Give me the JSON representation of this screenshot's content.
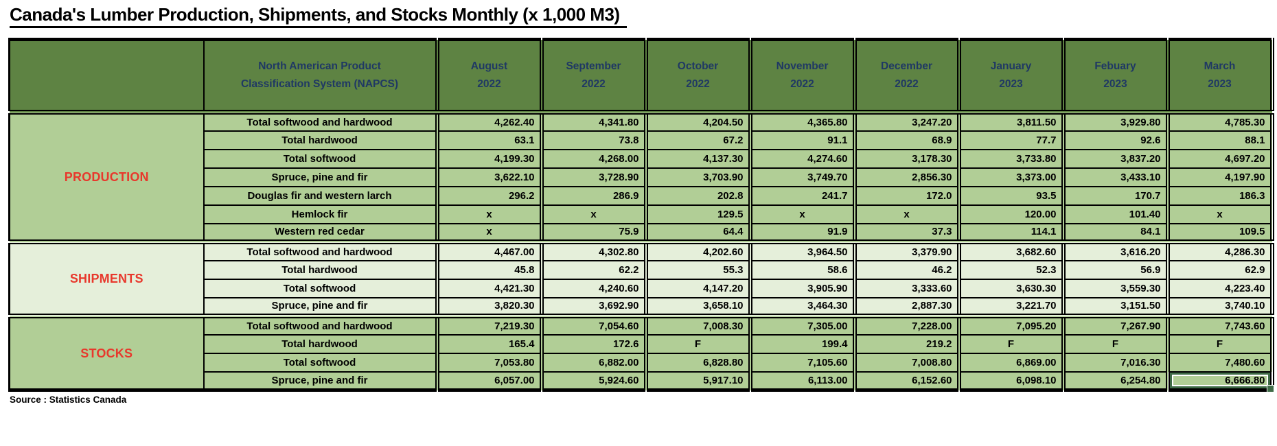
{
  "title": "Canada's Lumber Production, Shipments, and Stocks  Monthly (x 1,000 M3)",
  "source": "Source : Statistics Canada",
  "colors": {
    "header_background": "#5e8343",
    "header_text": "#1f3864",
    "body_background": "#b1ce96",
    "shipments_background": "#e5efda",
    "section_label": "#e8382c",
    "selection_border": "#3f6b47",
    "grid_border": "#000000"
  },
  "table": {
    "napcs_header": "North American Product Classification System (NAPCS)",
    "columns": [
      {
        "month": "August",
        "year": "2022"
      },
      {
        "month": "September",
        "year": "2022"
      },
      {
        "month": "October",
        "year": "2022"
      },
      {
        "month": "November",
        "year": "2022"
      },
      {
        "month": "December",
        "year": "2022"
      },
      {
        "month": "January",
        "year": "2023"
      },
      {
        "month": "Febuary",
        "year": "2023"
      },
      {
        "month": "March",
        "year": "2023"
      }
    ],
    "sections": [
      {
        "label": "PRODUCTION",
        "rows": [
          {
            "label": "Total softwood and hardwood",
            "values": [
              "4,262.40",
              "4,341.80",
              "4,204.50",
              "4,365.80",
              "3,247.20",
              "3,811.50",
              "3,929.80",
              "4,785.30"
            ]
          },
          {
            "label": "Total hardwood",
            "values": [
              "63.1",
              "73.8",
              "67.2",
              "91.1",
              "68.9",
              "77.7",
              "92.6",
              "88.1"
            ]
          },
          {
            "label": "Total softwood",
            "values": [
              "4,199.30",
              "4,268.00",
              "4,137.30",
              "4,274.60",
              "3,178.30",
              "3,733.80",
              "3,837.20",
              "4,697.20"
            ]
          },
          {
            "label": "Spruce, pine and fir",
            "values": [
              "3,622.10",
              "3,728.90",
              "3,703.90",
              "3,749.70",
              "2,856.30",
              "3,373.00",
              "3,433.10",
              "4,197.90"
            ]
          },
          {
            "label": "Douglas fir and western larch",
            "values": [
              "296.2",
              "286.9",
              "202.8",
              "241.7",
              "172.0",
              "93.5",
              "170.7",
              "186.3"
            ]
          },
          {
            "label": "Hemlock fir",
            "values": [
              "x",
              "x",
              "129.5",
              "x",
              "x",
              "120.00",
              "101.40",
              "x"
            ]
          },
          {
            "label": "Western red cedar",
            "values": [
              "x",
              "75.9",
              "64.4",
              "91.9",
              "37.3",
              "114.1",
              "84.1",
              "109.5"
            ]
          }
        ]
      },
      {
        "label": "SHIPMENTS",
        "rows": [
          {
            "label": "Total softwood and hardwood",
            "values": [
              "4,467.00",
              "4,302.80",
              "4,202.60",
              "3,964.50",
              "3,379.90",
              "3,682.60",
              "3,616.20",
              "4,286.30"
            ]
          },
          {
            "label": "Total hardwood",
            "values": [
              "45.8",
              "62.2",
              "55.3",
              "58.6",
              "46.2",
              "52.3",
              "56.9",
              "62.9"
            ]
          },
          {
            "label": "Total softwood",
            "values": [
              "4,421.30",
              "4,240.60",
              "4,147.20",
              "3,905.90",
              "3,333.60",
              "3,630.30",
              "3,559.30",
              "4,223.40"
            ]
          },
          {
            "label": "Spruce, pine and fir",
            "values": [
              "3,820.30",
              "3,692.90",
              "3,658.10",
              "3,464.30",
              "2,887.30",
              "3,221.70",
              "3,151.50",
              "3,740.10"
            ]
          }
        ]
      },
      {
        "label": "STOCKS",
        "rows": [
          {
            "label": "Total softwood and hardwood",
            "values": [
              "7,219.30",
              "7,054.60",
              "7,008.30",
              "7,305.00",
              "7,228.00",
              "7,095.20",
              "7,267.90",
              "7,743.60"
            ]
          },
          {
            "label": "Total hardwood",
            "values": [
              "165.4",
              "172.6",
              "F",
              "199.4",
              "219.2",
              "F",
              "F",
              "F"
            ]
          },
          {
            "label": "Total softwood",
            "values": [
              "7,053.80",
              "6,882.00",
              "6,828.80",
              "7,105.60",
              "7,008.80",
              "6,869.00",
              "7,016.30",
              "7,480.60"
            ]
          },
          {
            "label": "Spruce, pine and fir",
            "values": [
              "6,057.00",
              "5,924.60",
              "5,917.10",
              "6,113.00",
              "6,152.60",
              "6,098.10",
              "6,254.80",
              "6,666.80"
            ]
          }
        ]
      }
    ],
    "selected_cell": {
      "section_index": 2,
      "row_index": 3,
      "col_index": 7,
      "value": "6,666.80"
    }
  }
}
